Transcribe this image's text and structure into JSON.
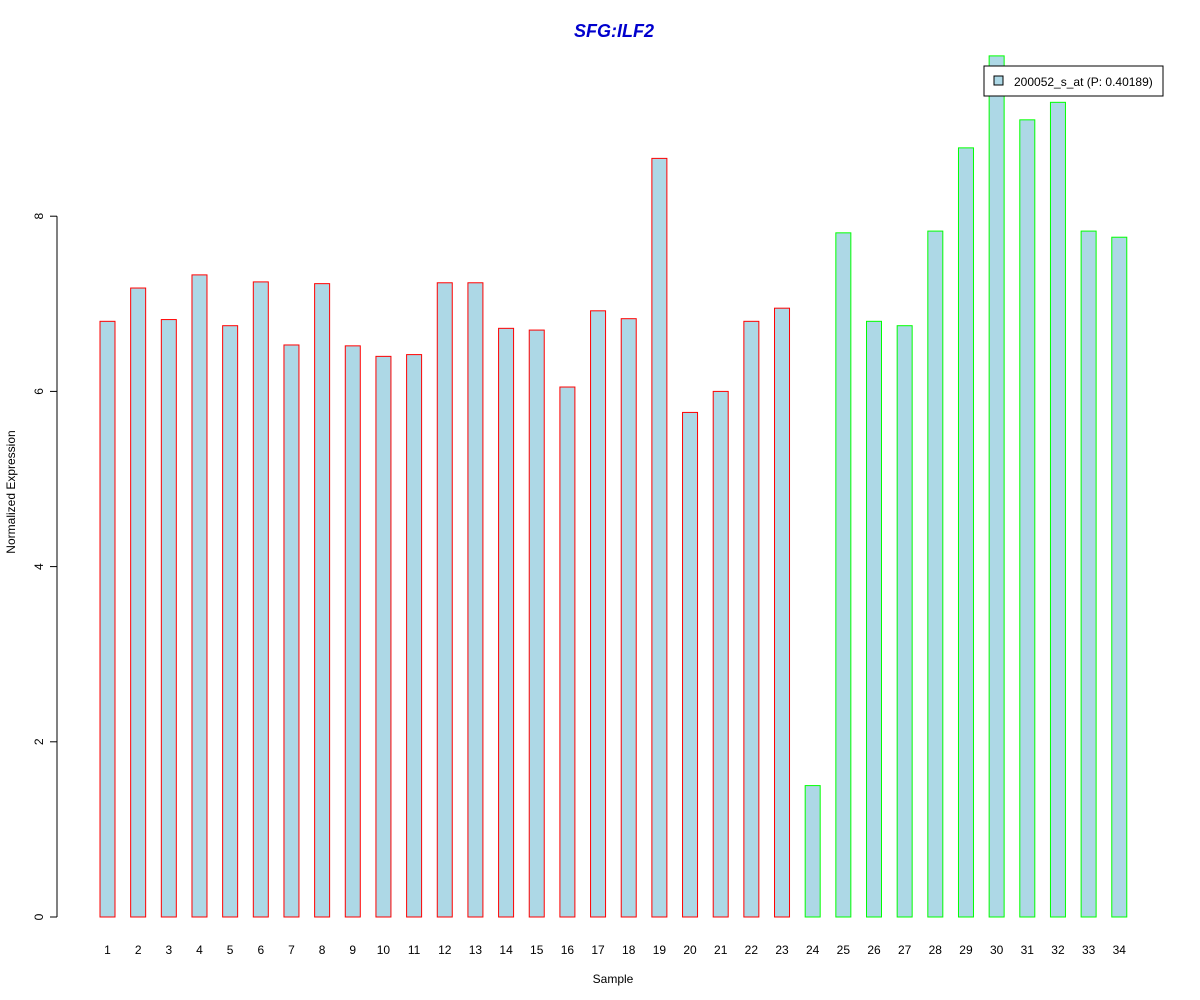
{
  "chart_data": {
    "type": "bar",
    "title": "SFG:ILF2",
    "xlabel": "Sample",
    "ylabel": "Normalized Expression",
    "ylim": [
      0,
      10
    ],
    "yticks": [
      0,
      2,
      4,
      6,
      8
    ],
    "grid": false,
    "legend": {
      "position": "top-right",
      "entries": [
        {
          "label": "200052_s_at (P: 0.40189)",
          "fill": "#add8e6"
        }
      ]
    },
    "categories": [
      "1",
      "2",
      "3",
      "4",
      "5",
      "6",
      "7",
      "8",
      "9",
      "10",
      "11",
      "12",
      "13",
      "14",
      "15",
      "16",
      "17",
      "18",
      "19",
      "20",
      "21",
      "22",
      "23",
      "24",
      "25",
      "26",
      "27",
      "28",
      "29",
      "30",
      "31",
      "32",
      "33",
      "34"
    ],
    "series": [
      {
        "name": "200052_s_at (P: 0.40189)",
        "values": [
          6.8,
          7.18,
          6.82,
          7.33,
          6.75,
          7.25,
          6.53,
          7.23,
          6.52,
          6.4,
          6.42,
          7.24,
          7.24,
          6.72,
          6.7,
          6.05,
          6.92,
          6.83,
          8.66,
          5.76,
          6.0,
          6.8,
          6.95,
          1.5,
          7.81,
          6.8,
          6.75,
          7.83,
          8.78,
          9.83,
          9.1,
          9.3,
          7.83,
          7.76
        ],
        "border_colors": [
          "#ff0000",
          "#ff0000",
          "#ff0000",
          "#ff0000",
          "#ff0000",
          "#ff0000",
          "#ff0000",
          "#ff0000",
          "#ff0000",
          "#ff0000",
          "#ff0000",
          "#ff0000",
          "#ff0000",
          "#ff0000",
          "#ff0000",
          "#ff0000",
          "#ff0000",
          "#ff0000",
          "#ff0000",
          "#ff0000",
          "#ff0000",
          "#ff0000",
          "#ff0000",
          "#00ff00",
          "#00ff00",
          "#00ff00",
          "#00ff00",
          "#00ff00",
          "#00ff00",
          "#00ff00",
          "#00ff00",
          "#00ff00",
          "#00ff00",
          "#00ff00"
        ]
      }
    ],
    "colors": {
      "bar_fill": "#add8e6",
      "title": "#0000cd",
      "axis": "#000000"
    }
  }
}
